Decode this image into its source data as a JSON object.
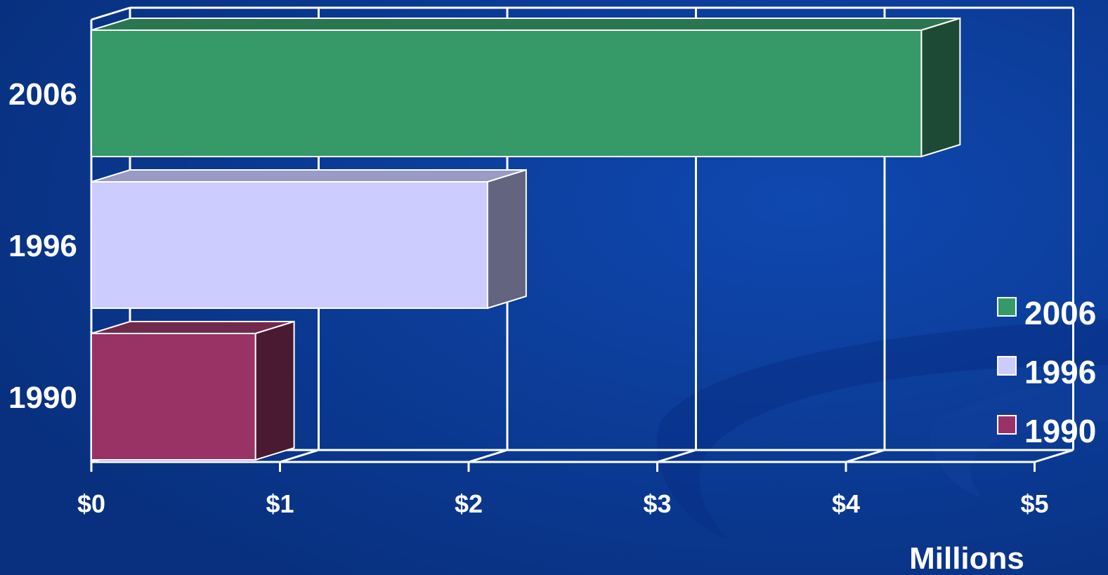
{
  "chart_data": {
    "type": "bar",
    "orientation": "horizontal",
    "three_d": true,
    "categories": [
      "2006",
      "1996",
      "1990"
    ],
    "values": [
      4.4,
      2.1,
      0.87
    ],
    "series": [
      {
        "name": "2006",
        "value": 4.4,
        "color": "#359a68",
        "top_color": "#2a7650",
        "side_color": "#1d4a34"
      },
      {
        "name": "1996",
        "value": 2.1,
        "color": "#ccccff",
        "top_color": "#9a9ac6",
        "side_color": "#63647f"
      },
      {
        "name": "1990",
        "value": 0.87,
        "color": "#993366",
        "top_color": "#722a4c",
        "side_color": "#4a1a33"
      }
    ],
    "x_ticks": [
      "$0",
      "$1",
      "$2",
      "$3",
      "$4",
      "$5"
    ],
    "xlim": [
      0,
      5
    ],
    "xlabel": "Millions",
    "grid": true,
    "legend_position": "right",
    "legend": [
      "2006",
      "1996",
      "1990"
    ]
  },
  "colors": {
    "background": "#0b3a9a",
    "grid": "#ffffff",
    "text": "#ffffff"
  }
}
